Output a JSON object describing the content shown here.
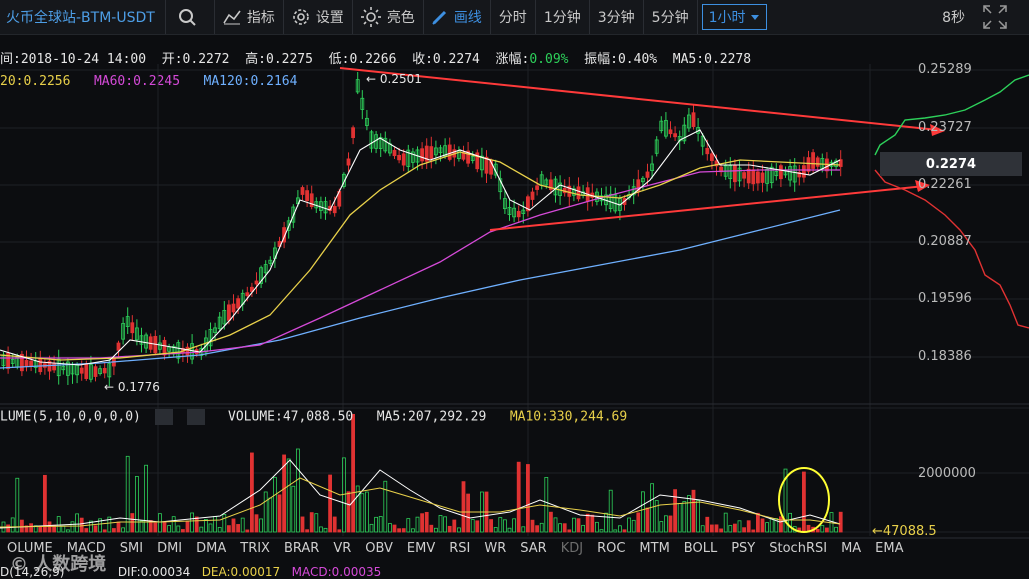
{
  "toolbar": {
    "title": "火币全球站-BTM-USDT",
    "indicator_label": "指标",
    "settings_label": "设置",
    "theme_label": "亮色",
    "draw_label": "画线",
    "intervals": [
      "分时",
      "1分钟",
      "3分钟",
      "5分钟"
    ],
    "selected_interval": "1小时",
    "timer": "8秒"
  },
  "ohlc": {
    "time": "间:2018-10-24 14:00",
    "open": "开:0.2272",
    "high": "高:0.2275",
    "low": "低:0.2266",
    "close": "收:0.2274",
    "change_label": "涨幅:",
    "change_value": "0.09%",
    "amplitude": "振幅:0.40%",
    "ma5": "MA5:0.2278"
  },
  "ma_row": {
    "ma20": "20:0.2256",
    "ma60": "MA60:0.2245",
    "ma120": "MA120:0.2164"
  },
  "price_axis": [
    "0.25289",
    "0.23727",
    "0.22261",
    "0.20887",
    "0.19596",
    "0.18386"
  ],
  "annotations": {
    "high_marker": "← 0.2501",
    "low_marker": "← 0.1776",
    "current_price": "0.2274",
    "volume_marker": "←47088.5"
  },
  "volume": {
    "label": "LUME(5,10,0,0,0,0)",
    "volume": "VOLUME:47,088.50",
    "ma5": "MA5:207,292.29",
    "ma10": "MA10:330,244.69",
    "axis_label": "2000000"
  },
  "indicators": [
    "OLUME",
    "MACD",
    "SMI",
    "DMI",
    "DMA",
    "TRIX",
    "BRAR",
    "VR",
    "OBV",
    "EMV",
    "RSI",
    "WR",
    "SAR",
    "KDJ",
    "ROC",
    "MTM",
    "BOLL",
    "PSY",
    "StochRSI",
    "MA",
    "EMA"
  ],
  "macd": {
    "params": "D(14,26,9)",
    "dif": "DIF:0.00034",
    "dea": "DEA:0.00017",
    "macd": "MACD:0.00035"
  },
  "watermark": "人数跨境",
  "colors": {
    "up": "#2dd05a",
    "down": "#e03232",
    "ma5": "#ffffff",
    "ma20": "#e8d04a",
    "ma60": "#d54ad8",
    "ma120": "#6fb0ff",
    "trend": "#ff3a3a",
    "highlight": "#ffff33"
  }
}
